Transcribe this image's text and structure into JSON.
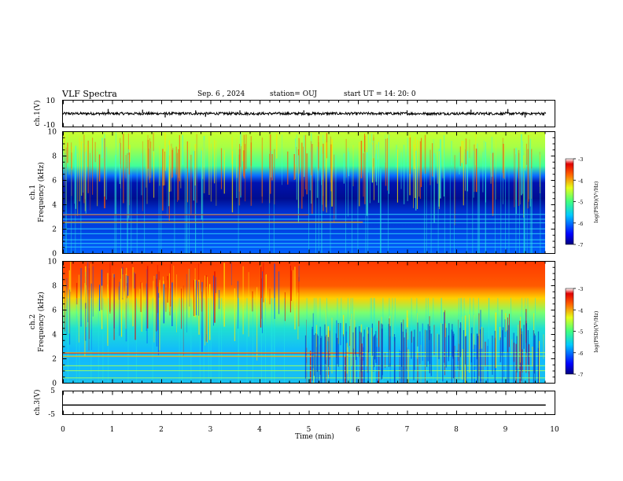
{
  "header": {
    "title": "VLF Spectra",
    "date": "Sep. 6  , 2024",
    "station": "station= OUJ",
    "start": "start  UT =   14: 20: 0"
  },
  "chart_data": [
    {
      "type": "line",
      "panel": "waveform-ch1",
      "ylabel": "ch.1(V)",
      "ylim": [
        -10,
        10
      ],
      "yticks": [
        "10",
        "-10"
      ],
      "xlim": [
        0,
        10
      ],
      "baseline": 0,
      "noise_amplitude": 1,
      "spikes": [
        {
          "x": 0.92,
          "y": 3.5
        },
        {
          "x": 1.62,
          "y": 3.0
        },
        {
          "x": 2.08,
          "y": -3.0
        },
        {
          "x": 2.7,
          "y": 2.5
        },
        {
          "x": 2.9,
          "y": -2.5
        },
        {
          "x": 3.6,
          "y": 2.5
        },
        {
          "x": 4.9,
          "y": 2.5
        },
        {
          "x": 7.0,
          "y": 2.5
        },
        {
          "x": 8.3,
          "y": 3.0
        },
        {
          "x": 9.05,
          "y": 3.5
        },
        {
          "x": 9.4,
          "y": -3.0
        }
      ]
    },
    {
      "type": "heatmap",
      "panel": "spectrogram-ch1",
      "ylabel": "ch.1\nFrequency (kHz)",
      "xlim": [
        0,
        10
      ],
      "ylim": [
        0,
        10
      ],
      "yticks": [
        "0",
        "2",
        "4",
        "6",
        "8",
        "10"
      ],
      "colorbar": {
        "label": "log(PSD)(V²/Hz)",
        "range": [
          -7,
          -3
        ],
        "ticks": [
          "-3",
          "-4",
          "-5",
          "-6",
          "-7"
        ]
      },
      "description_values": {
        "band_high_kHz": [
          6,
          10
        ],
        "band_high_log_psd": -4.3,
        "band_gap_kHz": [
          3.5,
          6
        ],
        "band_gap_log_psd": -6.5,
        "band_low_kHz": [
          0,
          3.5
        ],
        "band_low_log_psd": -6.0
      },
      "tones_kHz": [
        0.5,
        0.8,
        1.1,
        1.6,
        2.0,
        2.5,
        2.8,
        3.2
      ]
    },
    {
      "type": "heatmap",
      "panel": "spectrogram-ch2",
      "ylabel": "ch.2\nFrequency (kHz)",
      "xlim": [
        0,
        10
      ],
      "ylim": [
        0,
        10
      ],
      "yticks": [
        "0",
        "2",
        "4",
        "6",
        "8",
        "10"
      ],
      "colorbar": {
        "label": "log(PSD)(V²/Hz)",
        "range": [
          -7,
          -3
        ],
        "ticks": [
          "-3",
          "-4",
          "-5",
          "-6",
          "-7"
        ]
      },
      "description_values": {
        "band_high_kHz": [
          6.5,
          10
        ],
        "band_high_log_psd": -3.4,
        "band_mid_kHz": [
          4,
          6.5
        ],
        "band_mid_log_psd": -4.8,
        "band_low_kHz": [
          0,
          4
        ],
        "band_low_log_psd": -5.3,
        "change_time_min": 4.9
      },
      "tones_kHz": [
        0.4,
        1.0,
        1.4,
        2.2,
        2.5
      ]
    },
    {
      "type": "line",
      "panel": "waveform-ch3",
      "ylabel": "ch.3(V)",
      "ylim": [
        -5,
        5
      ],
      "yticks": [
        "5",
        "-5"
      ],
      "xlim": [
        0,
        10
      ],
      "xlabel": "Time  (min)",
      "xticks": [
        "0",
        "1",
        "2",
        "3",
        "4",
        "5",
        "6",
        "7",
        "8",
        "9",
        "10"
      ],
      "values": [
        -1.0,
        -1.0
      ]
    }
  ]
}
